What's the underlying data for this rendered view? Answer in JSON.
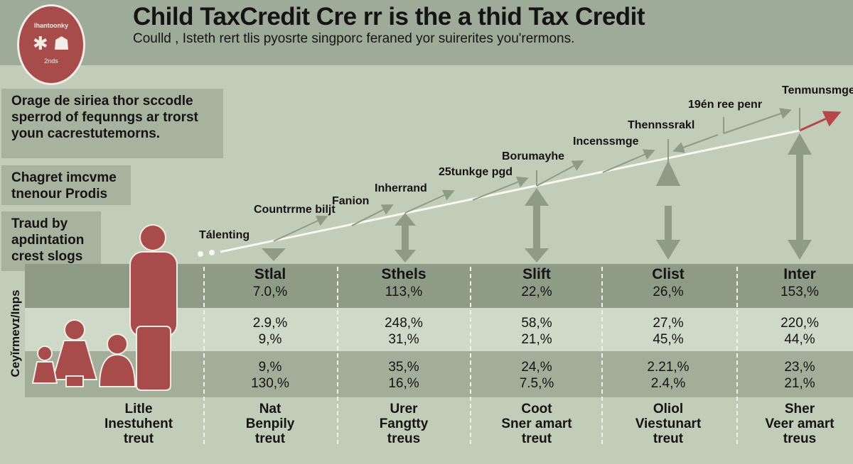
{
  "header": {
    "title": "Child TaxCredit Cre rr is the a thid Tax Credit",
    "subtitle": "Coulld , Isteth rert tlis pyosrte singporc feraned yor suirerites you'rermons."
  },
  "logo": {
    "top_text": "Ihantoonky",
    "bottom_text": "2nds"
  },
  "panels": [
    "Orage de siriea thor sccodle sperrod of fequnngs ar trorst youn cacrestutemorns.",
    "Chagret imcvme tnenour Prodis",
    "Traud by apdintation crest slogs"
  ],
  "side_label": "Ceyǐrmevɪ/Inps",
  "timeline_labels": [
    "Tálenting",
    "Countrrme biljt",
    "Fanion",
    "Inherrand",
    "25tunkge pgd",
    "Borumayhe",
    "Incenssmge",
    "Thennssrakl",
    "19én ree penr",
    "Tenmunsmge"
  ],
  "table": {
    "columns": [
      {
        "header": "Stlal",
        "values": [
          "7.0,%",
          "2.9,%",
          "9,%",
          "9,%",
          "130,%"
        ],
        "footer": [
          "Nat",
          "Benpily",
          "treut"
        ]
      },
      {
        "header": "Sthels",
        "values": [
          "113,%",
          "248,%",
          "31,%",
          "35,%",
          "16,%"
        ],
        "footer": [
          "Urer",
          "Fangtty",
          "treus"
        ]
      },
      {
        "header": "Slift",
        "values": [
          "22,%",
          "58,%",
          "21,%",
          "24,%",
          "7.5,%"
        ],
        "footer": [
          "Coot",
          "Sner amart",
          "treut"
        ]
      },
      {
        "header": "Clist",
        "values": [
          "26,%",
          "27,%",
          "45,%",
          "2.21,%",
          "2.4,%"
        ],
        "footer": [
          "Oliol",
          "Viestunart",
          "treut"
        ]
      },
      {
        "header": "Inter",
        "values": [
          "153,%",
          "220,%",
          "44,%",
          "23,%",
          "21,%"
        ],
        "footer": [
          "Sher",
          "Veer amart",
          "treus"
        ]
      }
    ],
    "left_footer": [
      "Litle",
      "Inestuhent",
      "treut"
    ]
  },
  "colors": {
    "accent": "#a84c4b",
    "header_bg": "#9eab98",
    "bg": "#c2cdb9",
    "arrow": "#8e9b86"
  }
}
